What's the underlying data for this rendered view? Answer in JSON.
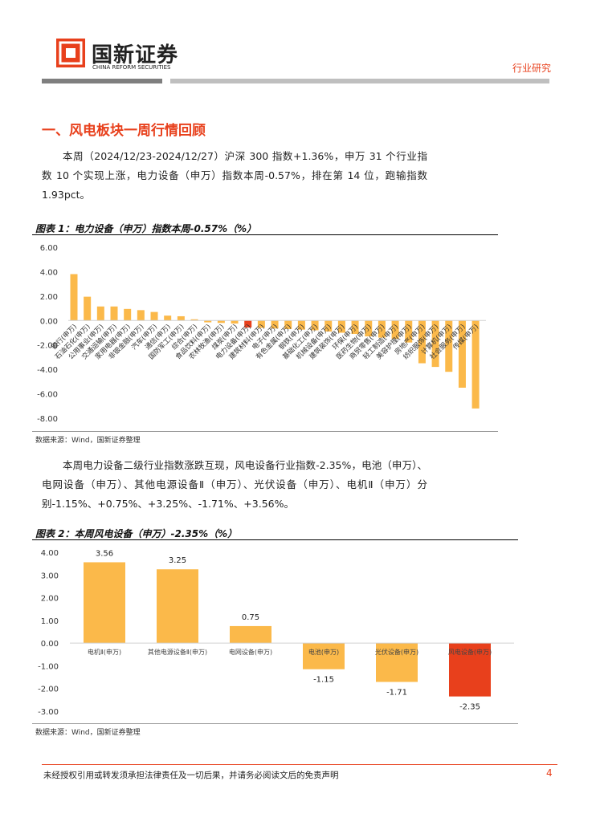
{
  "header": {
    "company": "国新证券",
    "company_en": "CHINA REFORM SECURITIES",
    "section_tag": "行业研究"
  },
  "heading": "一、风电板块一周行情回顾",
  "paragraphs": [
    "本周（2024/12/23-2024/12/27）沪深 300 指数+1.36%，申万 31 个行业指数 10 个实现上涨，电力设备（申万）指数本周-0.57%，排在第 14 位，跑输指数 1.93pct。",
    "本周电力设备二级行业指数涨跌互现，风电设备行业指数-2.35%，电池（申万）、电网设备（申万）、其他电源设备Ⅱ（申万）、光伏设备（申万）、电机Ⅱ（申万）分别-1.15%、+0.75%、+3.25%、-1.71%、+3.56%。"
  ],
  "figures": [
    {
      "caption": "图表 1：电力设备（申万）指数本周-0.57%（%）",
      "source": "数据来源：Wind，国新证券整理",
      "chart_data": {
        "type": "bar",
        "categories": [
          "银行(申万)",
          "石油石化(申万)",
          "公用事业(申万)",
          "交通运输(申万)",
          "家用电器(申万)",
          "非银金融(申万)",
          "汽车(申万)",
          "通信(申万)",
          "国防军工(申万)",
          "综合(申万)",
          "食品饮料(申万)",
          "农林牧渔(申万)",
          "煤炭(申万)",
          "电力设备(申万)",
          "建筑材料(申万)",
          "电子(申万)",
          "有色金属(申万)",
          "钢铁(申万)",
          "基础化工(申万)",
          "机械设备(申万)",
          "建筑装饰(申万)",
          "环保(申万)",
          "医药生物(申万)",
          "商贸零售(申万)",
          "轻工制造(申万)",
          "美容护理(申万)",
          "房地产(申万)",
          "纺织服饰(申万)",
          "计算机(申万)",
          "社会服务(申万)",
          "传媒(申万)"
        ],
        "values": [
          3.8,
          1.95,
          1.15,
          1.15,
          0.95,
          0.85,
          0.7,
          0.4,
          0.35,
          0.1,
          -0.15,
          -0.2,
          -0.25,
          -0.57,
          -0.6,
          -0.65,
          -0.7,
          -0.75,
          -0.8,
          -0.9,
          -1.0,
          -1.1,
          -1.3,
          -1.4,
          -1.5,
          -1.8,
          -3.5,
          -3.8,
          -4.2,
          -5.5,
          -7.2
        ],
        "colors": {
          "default": "#fbb94a",
          "highlight": "#e8401c"
        },
        "highlight_index": 13,
        "ylim": [
          -8,
          6
        ],
        "yticks": [
          {
            "value": -8,
            "label": "-8.00"
          },
          {
            "value": -6,
            "label": "-6.00"
          },
          {
            "value": -4,
            "label": "-4.00"
          },
          {
            "value": -2,
            "label": "-2.00"
          },
          {
            "value": 0,
            "label": "0.00"
          },
          {
            "value": 2,
            "label": "2.00"
          },
          {
            "value": 4,
            "label": "4.00"
          },
          {
            "value": 6,
            "label": "6.00"
          }
        ]
      }
    },
    {
      "caption": "图表 2：本周风电设备（申万）-2.35%（%）",
      "source": "数据来源：Wind，国新证券整理",
      "chart_data": {
        "type": "bar",
        "categories": [
          "电机Ⅱ(申万)",
          "其他电源设备Ⅱ(申万)",
          "电网设备(申万)",
          "电池(申万)",
          "光伏设备(申万)",
          "风电设备(申万)"
        ],
        "values": [
          3.56,
          3.25,
          0.75,
          -1.15,
          -1.71,
          -2.35
        ],
        "colors": {
          "default": "#fbb94a",
          "highlight": "#e8401c"
        },
        "highlight_index": 5,
        "ylim": [
          -3,
          4
        ],
        "yticks": [
          {
            "value": -3,
            "label": "-3.00"
          },
          {
            "value": -2,
            "label": "-2.00"
          },
          {
            "value": -1,
            "label": "-1.00"
          },
          {
            "value": 0,
            "label": "0.00"
          },
          {
            "value": 1,
            "label": "1.00"
          },
          {
            "value": 2,
            "label": "2.00"
          },
          {
            "value": 3,
            "label": "3.00"
          },
          {
            "value": 4,
            "label": "4.00"
          }
        ],
        "data_labels": true
      }
    }
  ],
  "footer": {
    "disclaimer": "未经授权引用或转发须承担法律责任及一切后果，并请务必阅读文后的免责声明",
    "page": "4"
  }
}
